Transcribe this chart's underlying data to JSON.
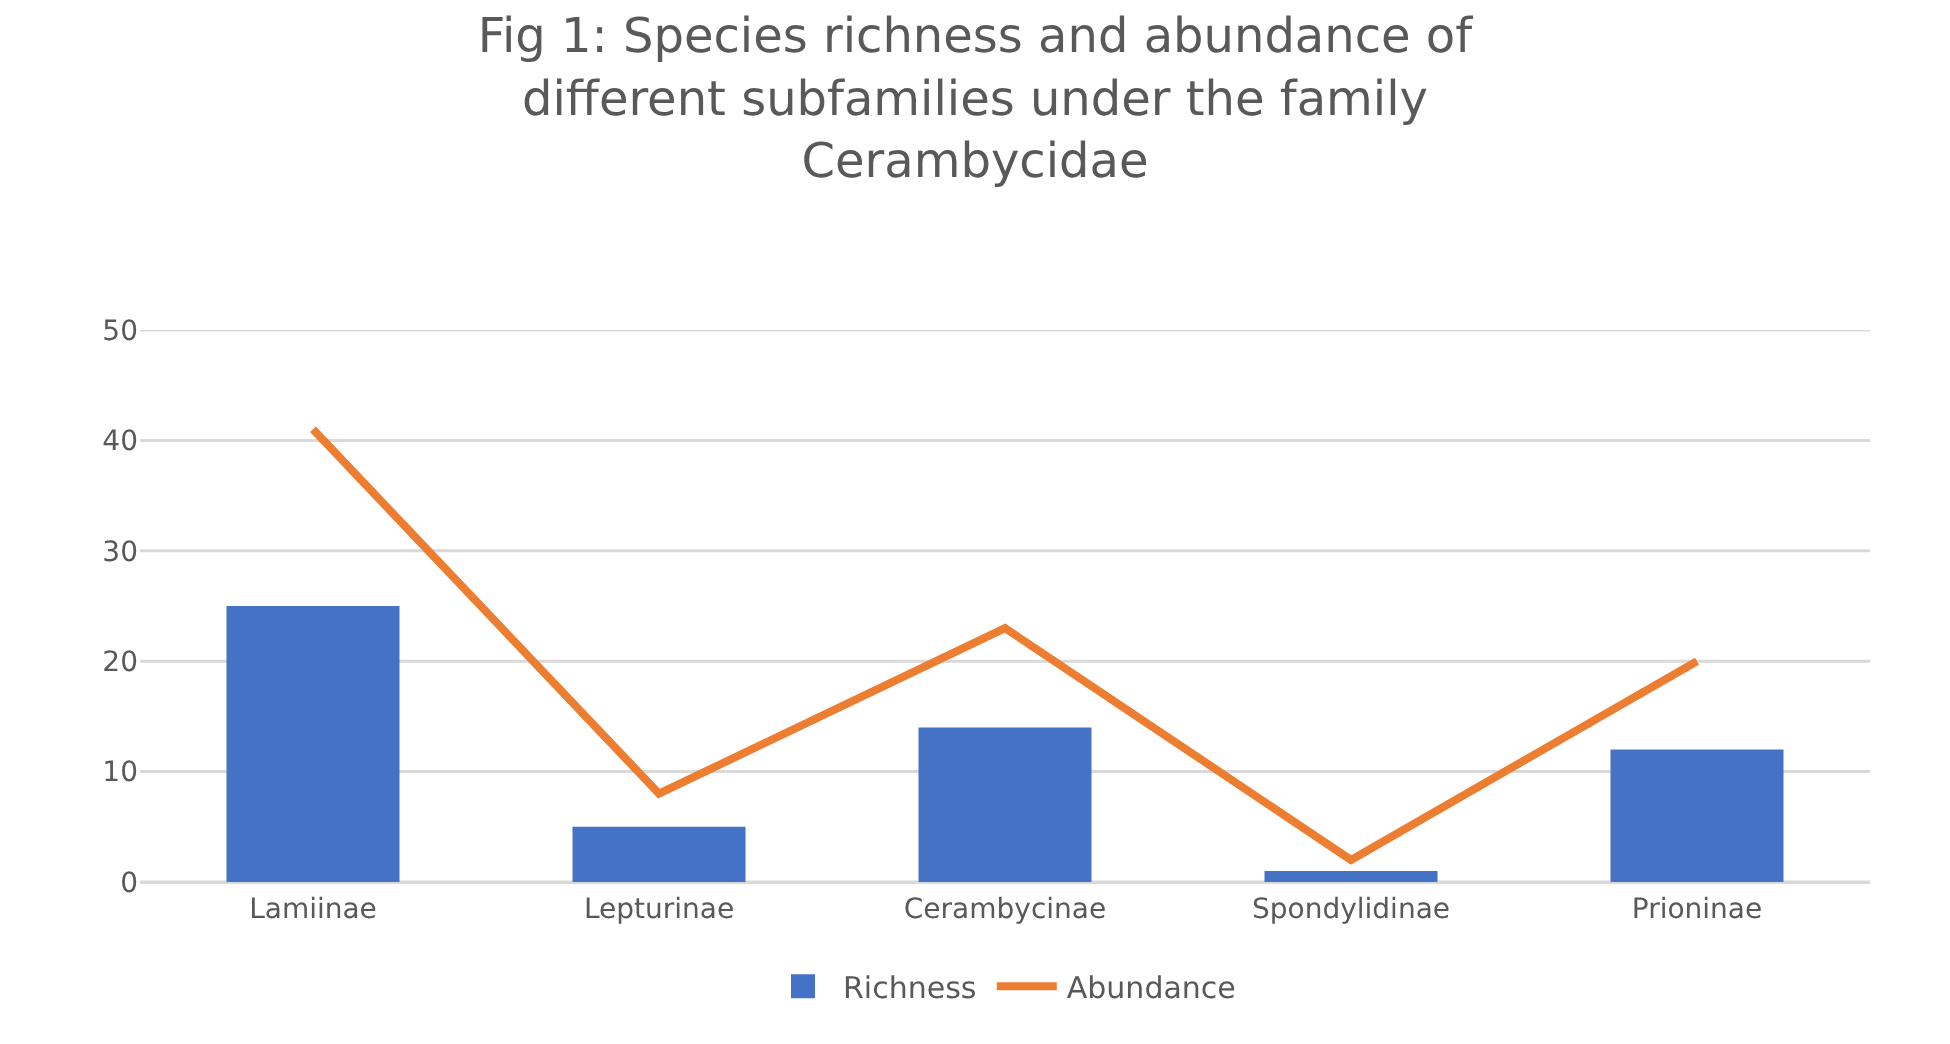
{
  "chart_data": {
    "type": "bar",
    "title": "Fig 1: Species richness and abundance of different subfamilies under the family Cerambycidae",
    "categories": [
      "Lamiinae",
      "Lepturinae",
      "Cerambycinae",
      "Spondylidinae",
      "Prioninae"
    ],
    "series": [
      {
        "name": "Richness",
        "color": "#4472c4",
        "values": [
          25,
          5,
          14,
          1,
          12
        ]
      },
      {
        "name": "Abundance",
        "type": "line",
        "color": "#ed7d31",
        "values": [
          41,
          8,
          23,
          2,
          20
        ]
      }
    ],
    "ylim": [
      0,
      50
    ],
    "yticks": [
      0,
      10,
      20,
      30,
      40,
      50
    ],
    "grid": "y",
    "legend": "bottom",
    "marker": "none",
    "line_style": "solid"
  }
}
